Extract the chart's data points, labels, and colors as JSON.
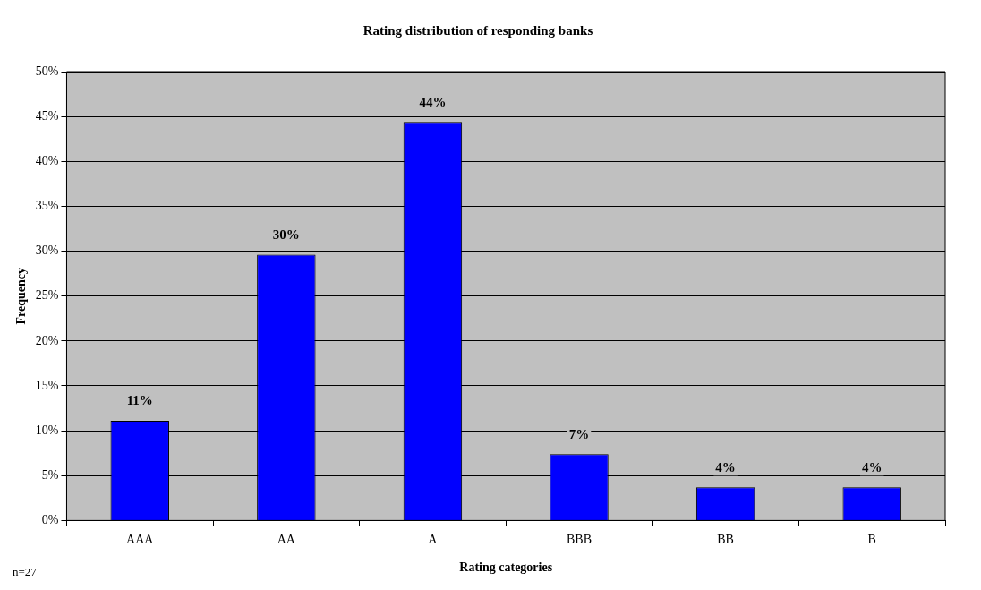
{
  "chart_data": {
    "type": "bar",
    "title": "Rating distribution of responding banks",
    "xlabel": "Rating categories",
    "ylabel": "Frequency",
    "categories": [
      "AAA",
      "AA",
      "A",
      "BBB",
      "BB",
      "B"
    ],
    "values": [
      11.1,
      29.6,
      44.4,
      7.4,
      3.7,
      3.7
    ],
    "value_labels": [
      "11%",
      "30%",
      "44%",
      "7%",
      "4%",
      "4%"
    ],
    "color": "#0000ff",
    "ylim": [
      0,
      50
    ],
    "yticks": [
      {
        "value": 0,
        "label": "0%"
      },
      {
        "value": 5,
        "label": "5%"
      },
      {
        "value": 10,
        "label": "10%"
      },
      {
        "value": 15,
        "label": "15%"
      },
      {
        "value": 20,
        "label": "20%"
      },
      {
        "value": 25,
        "label": "25%"
      },
      {
        "value": 30,
        "label": "30%"
      },
      {
        "value": 35,
        "label": "35%"
      },
      {
        "value": 40,
        "label": "40%"
      },
      {
        "value": 45,
        "label": "45%"
      },
      {
        "value": 50,
        "label": "50%"
      }
    ],
    "grid": "y",
    "legend": false,
    "annotations": [
      "n=27"
    ]
  }
}
